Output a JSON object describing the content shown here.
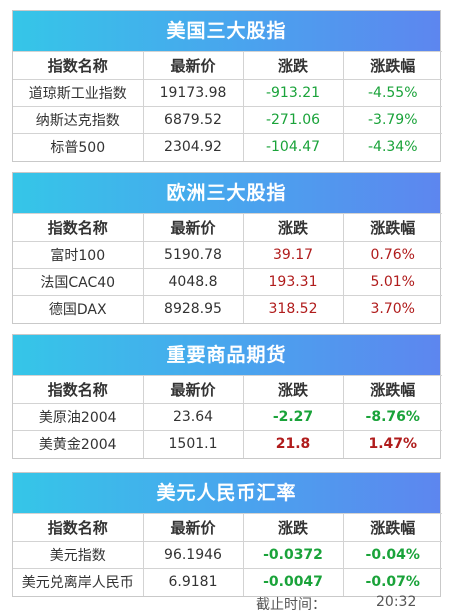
{
  "panels": [
    {
      "title": "美国三大股指",
      "headers": [
        "指数名称",
        "最新价",
        "涨跌",
        "涨跌幅"
      ],
      "rows": [
        {
          "name": "道琼斯工业指数",
          "price": "19173.98",
          "change": "-913.21",
          "pct": "-4.55%",
          "dir": "down",
          "bold": false
        },
        {
          "name": "纳斯达克指数",
          "price": "6879.52",
          "change": "-271.06",
          "pct": "-3.79%",
          "dir": "down",
          "bold": false
        },
        {
          "name": "标普500",
          "price": "2304.92",
          "change": "-104.47",
          "pct": "-4.34%",
          "dir": "down",
          "bold": false
        }
      ]
    },
    {
      "title": "欧洲三大股指",
      "headers": [
        "指数名称",
        "最新价",
        "涨跌",
        "涨跌幅"
      ],
      "rows": [
        {
          "name": "富时100",
          "price": "5190.78",
          "change": "39.17",
          "pct": "0.76%",
          "dir": "up",
          "bold": false
        },
        {
          "name": "法国CAC40",
          "price": "4048.8",
          "change": "193.31",
          "pct": "5.01%",
          "dir": "up",
          "bold": false
        },
        {
          "name": "德国DAX",
          "price": "8928.95",
          "change": "318.52",
          "pct": "3.70%",
          "dir": "up",
          "bold": false
        }
      ]
    },
    {
      "title": "重要商品期货",
      "headers": [
        "指数名称",
        "最新价",
        "涨跌",
        "涨跌幅"
      ],
      "rows": [
        {
          "name": "美原油2004",
          "price": "23.64",
          "change": "-2.27",
          "pct": "-8.76%",
          "dir": "down",
          "bold": true
        },
        {
          "name": "美黄金2004",
          "price": "1501.1",
          "change": "21.8",
          "pct": "1.47%",
          "dir": "up",
          "bold": true
        }
      ]
    },
    {
      "title": "美元人民币汇率",
      "headers": [
        "指数名称",
        "最新价",
        "涨跌",
        "涨跌幅"
      ],
      "rows": [
        {
          "name": "美元指数",
          "price": "96.1946",
          "change": "-0.0372",
          "pct": "-0.04%",
          "dir": "down",
          "bold": true
        },
        {
          "name": "美元兑离岸人民币",
          "price": "6.9181",
          "change": "-0.0047",
          "pct": "-0.07%",
          "dir": "down",
          "bold": true
        }
      ]
    }
  ],
  "footer": {
    "label": "截止时间：",
    "time": "20:32"
  },
  "colors": {
    "down": "#1aa33a",
    "up": "#b01c1c",
    "header_gradient_start": "#35c6e8",
    "header_gradient_end": "#5d86ef"
  }
}
